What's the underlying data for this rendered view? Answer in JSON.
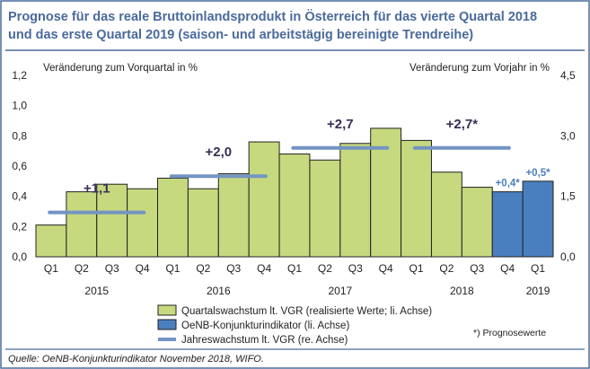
{
  "chart_data": {
    "type": "bar",
    "title_line1": "Prognose für das reale Bruttoinlandsprodukt in Österreich für das vierte Quartal 2018",
    "title_line2": "und das erste Quartal 2019 (saison- und arbeitstägig bereinigte Trendreihe)",
    "ylabel_left": "Veränderung zum Vorquartal in %",
    "ylabel_right": "Veränderung zum Vorjahr in %",
    "ylim_left": [
      0,
      1.2
    ],
    "ylim_right": [
      0,
      4.5
    ],
    "yticks_left": [
      "0,0",
      "0,2",
      "0,4",
      "0,6",
      "0,8",
      "1,0",
      "1,2"
    ],
    "yticks_right": [
      "0,0",
      "1,5",
      "3,0",
      "4,5"
    ],
    "categories": [
      "Q1",
      "Q2",
      "Q3",
      "Q4",
      "Q1",
      "Q2",
      "Q3",
      "Q4",
      "Q1",
      "Q2",
      "Q3",
      "Q4",
      "Q1",
      "Q2",
      "Q3",
      "Q4",
      "Q1"
    ],
    "years": [
      {
        "label": "2015",
        "start": 0,
        "end": 3
      },
      {
        "label": "2016",
        "start": 4,
        "end": 7
      },
      {
        "label": "2017",
        "start": 8,
        "end": 11
      },
      {
        "label": "2018",
        "start": 12,
        "end": 15
      },
      {
        "label": "2019",
        "start": 16,
        "end": 16
      }
    ],
    "series": [
      {
        "name": "Quartalswachstum lt. VGR (realisierte Werte; li. Achse)",
        "color": "#c6d97f",
        "values": [
          0.21,
          0.43,
          0.48,
          0.45,
          0.52,
          0.45,
          0.55,
          0.76,
          0.68,
          0.64,
          0.75,
          0.85,
          0.77,
          0.56,
          0.46,
          null,
          null
        ]
      },
      {
        "name": "OeNB-Konjunkturindikator (li. Achse)",
        "color": "#4a7fbf",
        "values": [
          null,
          null,
          null,
          null,
          null,
          null,
          null,
          null,
          null,
          null,
          null,
          null,
          null,
          null,
          null,
          0.43,
          0.5
        ]
      },
      {
        "name": "Jahreswachstum lt. VGR (re. Achse)",
        "color": "#7394c4",
        "type": "step-line",
        "segments": [
          {
            "start": 0,
            "end": 3,
            "value": 1.1,
            "label": "+1,1"
          },
          {
            "start": 4,
            "end": 7,
            "value": 2.0,
            "label": "+2,0"
          },
          {
            "start": 8,
            "end": 11,
            "value": 2.7,
            "label": "+2,7"
          },
          {
            "start": 12,
            "end": 15,
            "value": 2.7,
            "label": "+2,7*"
          }
        ]
      }
    ],
    "forecast_labels": [
      {
        "index": 15,
        "label": "+0,4*"
      },
      {
        "index": 16,
        "label": "+0,5*"
      }
    ],
    "legend_position": "bottom",
    "footnote": "*) Prognosewerte",
    "source": "Quelle: OeNB-Konjunkturindikator November 2018, WIFO."
  },
  "colors": {
    "title": "#4a6a9c",
    "frame": "#4a6a9c",
    "bar_stroke": "#222222",
    "label_dark": "#3a2f55",
    "label_blue": "#4a7fbf"
  }
}
